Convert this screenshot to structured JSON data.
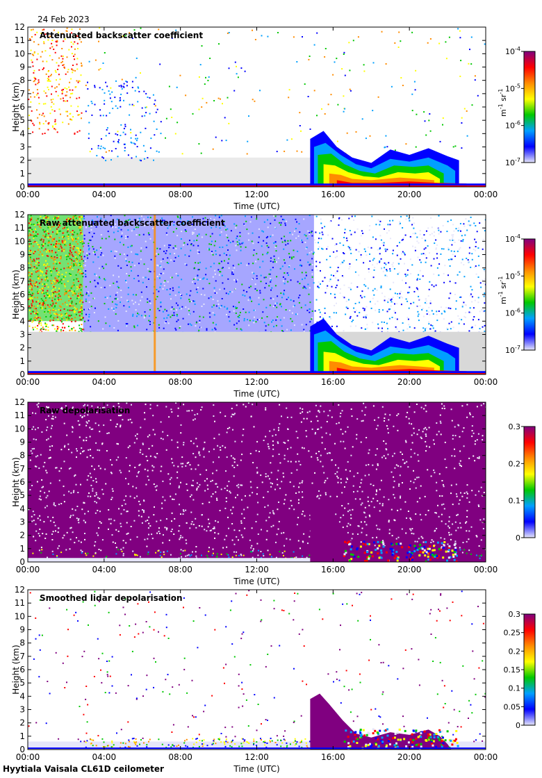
{
  "date": "24 Feb 2023",
  "footer": "Hyytiala Vaisala CL61D ceilometer",
  "colors": {
    "no_signal": "#d8d8d8",
    "colormap": [
      "#e6e6fa",
      "#0000ff",
      "#00a0ff",
      "#00c800",
      "#ffff00",
      "#ff8c00",
      "#ff0000",
      "#800080"
    ]
  },
  "chart_data": [
    {
      "type": "heatmap",
      "title": "Attenuated backscatter coefficient",
      "xlabel": "Time (UTC)",
      "ylabel": "Height (km)",
      "x_ticks": [
        "00:00",
        "04:00",
        "08:00",
        "12:00",
        "16:00",
        "20:00",
        "00:00"
      ],
      "y_ticks": [
        "0",
        "1",
        "2",
        "3",
        "4",
        "5",
        "6",
        "7",
        "8",
        "9",
        "10",
        "11",
        "12"
      ],
      "ylim": [
        0,
        12
      ],
      "xlim_hours": [
        0,
        24
      ],
      "scale": "log",
      "colorbar": {
        "unit_label": "m-1 sr-1",
        "unit_main1": "m",
        "unit_sup1": "-1",
        "unit_main2": " sr",
        "unit_sup2": "-1",
        "ticks": [
          {
            "base": "10",
            "exp": "-4",
            "value": 0.0001
          },
          {
            "base": "10",
            "exp": "-5",
            "value": 1e-05
          },
          {
            "base": "10",
            "exp": "-6",
            "value": 1e-06
          },
          {
            "base": "10",
            "exp": "-7",
            "value": 1e-07
          }
        ]
      }
    },
    {
      "type": "heatmap",
      "title": "Raw attenuated backscatter coefficient",
      "xlabel": "Time (UTC)",
      "ylabel": "Height (km)",
      "x_ticks": [
        "00:00",
        "04:00",
        "08:00",
        "12:00",
        "16:00",
        "20:00",
        "00:00"
      ],
      "y_ticks": [
        "0",
        "1",
        "2",
        "3",
        "4",
        "5",
        "6",
        "7",
        "8",
        "9",
        "10",
        "11",
        "12"
      ],
      "ylim": [
        0,
        12
      ],
      "xlim_hours": [
        0,
        24
      ],
      "scale": "log",
      "colorbar": {
        "unit_label": "m-1 sr-1",
        "unit_main1": "m",
        "unit_sup1": "-1",
        "unit_main2": " sr",
        "unit_sup2": "-1",
        "ticks": [
          {
            "base": "10",
            "exp": "-4",
            "value": 0.0001
          },
          {
            "base": "10",
            "exp": "-5",
            "value": 1e-05
          },
          {
            "base": "10",
            "exp": "-6",
            "value": 1e-06
          },
          {
            "base": "10",
            "exp": "-7",
            "value": 1e-07
          }
        ]
      }
    },
    {
      "type": "heatmap",
      "title": "Raw depolarisation",
      "xlabel": "Time (UTC)",
      "ylabel": "Height (km)",
      "x_ticks": [
        "00:00",
        "04:00",
        "08:00",
        "12:00",
        "16:00",
        "20:00",
        "00:00"
      ],
      "y_ticks": [
        "0",
        "1",
        "2",
        "3",
        "4",
        "5",
        "6",
        "7",
        "8",
        "9",
        "10",
        "11",
        "12"
      ],
      "ylim": [
        0,
        12
      ],
      "xlim_hours": [
        0,
        24
      ],
      "scale": "linear",
      "colorbar": {
        "ticks": [
          {
            "label": "0.3",
            "value": 0.3
          },
          {
            "label": "0.2",
            "value": 0.2
          },
          {
            "label": "0.1",
            "value": 0.1
          },
          {
            "label": "0",
            "value": 0
          }
        ],
        "range": [
          0,
          0.3
        ]
      }
    },
    {
      "type": "heatmap",
      "title": "Smoothed lidar depolarisation",
      "xlabel": "Time (UTC)",
      "ylabel": "Height (km)",
      "x_ticks": [
        "00:00",
        "04:00",
        "08:00",
        "12:00",
        "16:00",
        "20:00",
        "00:00"
      ],
      "y_ticks": [
        "0",
        "1",
        "2",
        "3",
        "4",
        "5",
        "6",
        "7",
        "8",
        "9",
        "10",
        "11",
        "12"
      ],
      "ylim": [
        0,
        12
      ],
      "xlim_hours": [
        0,
        24
      ],
      "scale": "linear",
      "colorbar": {
        "ticks": [
          {
            "label": "0.3",
            "value": 0.3
          },
          {
            "label": "0.25",
            "value": 0.25
          },
          {
            "label": "0.2",
            "value": 0.2
          },
          {
            "label": "0.15",
            "value": 0.15
          },
          {
            "label": "0.1",
            "value": 0.1
          },
          {
            "label": "0.05",
            "value": 0.05
          },
          {
            "label": "0",
            "value": 0
          }
        ],
        "range": [
          0,
          0.3
        ]
      }
    }
  ]
}
